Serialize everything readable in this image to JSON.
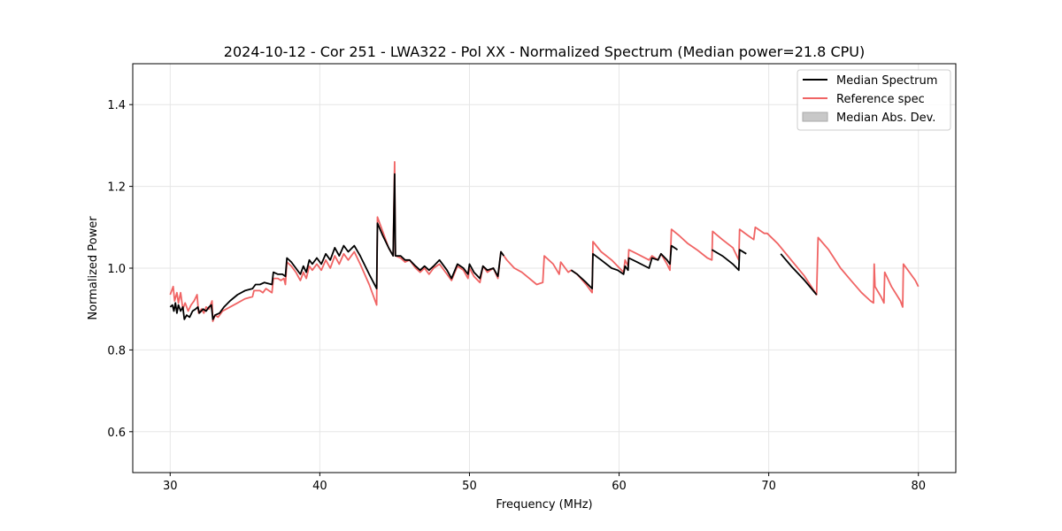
{
  "chart_data": {
    "type": "line",
    "title": "2024-10-12 - Cor 251 - LWA322 - Pol XX - Normalized Spectrum (Median power=21.8 CPU)",
    "xlabel": "Frequency (MHz)",
    "ylabel": "Normalized Power",
    "xlim": [
      27.5,
      82.5
    ],
    "ylim": [
      0.5,
      1.5
    ],
    "xticks": [
      30,
      40,
      50,
      60,
      70,
      80
    ],
    "yticks": [
      0.6,
      0.8,
      1.0,
      1.2,
      1.4
    ],
    "xtick_labels": [
      "30",
      "40",
      "50",
      "60",
      "70",
      "80"
    ],
    "ytick_labels": [
      "0.6",
      "0.8",
      "1.0",
      "1.2",
      "1.4"
    ],
    "grid": true,
    "legend_position": "top-right",
    "legend": [
      {
        "label": "Median Spectrum",
        "kind": "line",
        "color": "#000000"
      },
      {
        "label": "Reference spec",
        "kind": "line",
        "color": "#f06464"
      },
      {
        "label": "Median Abs. Dev.",
        "kind": "patch",
        "color": "#c8c8c8"
      }
    ],
    "series": [
      {
        "name": "Reference spec",
        "color": "#f06464",
        "segments": [
          [
            [
              30.0,
              0.935
            ],
            [
              30.2,
              0.955
            ],
            [
              30.3,
              0.92
            ],
            [
              30.45,
              0.94
            ],
            [
              30.55,
              0.915
            ],
            [
              30.7,
              0.94
            ],
            [
              30.85,
              0.9
            ],
            [
              31.0,
              0.915
            ],
            [
              31.2,
              0.895
            ],
            [
              31.4,
              0.91
            ],
            [
              31.6,
              0.92
            ],
            [
              31.8,
              0.935
            ],
            [
              31.9,
              0.89
            ],
            [
              32.1,
              0.9
            ],
            [
              32.25,
              0.89
            ],
            [
              32.4,
              0.905
            ],
            [
              32.6,
              0.9
            ],
            [
              32.8,
              0.92
            ],
            [
              32.85,
              0.87
            ],
            [
              33.0,
              0.885
            ],
            [
              33.2,
              0.88
            ],
            [
              33.5,
              0.895
            ],
            [
              34.0,
              0.905
            ],
            [
              34.5,
              0.915
            ],
            [
              35.0,
              0.925
            ],
            [
              35.5,
              0.93
            ],
            [
              35.6,
              0.945
            ],
            [
              36.0,
              0.945
            ],
            [
              36.2,
              0.94
            ],
            [
              36.4,
              0.95
            ],
            [
              36.8,
              0.94
            ],
            [
              36.9,
              0.975
            ],
            [
              37.2,
              0.975
            ],
            [
              37.4,
              0.97
            ],
            [
              37.6,
              0.975
            ],
            [
              37.7,
              0.96
            ],
            [
              37.8,
              1.015
            ],
            [
              38.1,
              1.005
            ],
            [
              38.4,
              0.99
            ],
            [
              38.7,
              0.97
            ],
            [
              38.9,
              0.99
            ],
            [
              39.1,
              0.975
            ],
            [
              39.3,
              1.005
            ],
            [
              39.5,
              0.995
            ],
            [
              39.8,
              1.01
            ],
            [
              40.1,
              0.995
            ],
            [
              40.4,
              1.02
            ],
            [
              40.7,
              1.0
            ],
            [
              41.0,
              1.03
            ],
            [
              41.3,
              1.01
            ],
            [
              41.6,
              1.035
            ],
            [
              41.9,
              1.02
            ],
            [
              42.3,
              1.04
            ],
            [
              42.7,
              1.01
            ],
            [
              43.3,
              0.96
            ],
            [
              43.8,
              0.91
            ],
            [
              43.85,
              1.125
            ],
            [
              44.2,
              1.09
            ],
            [
              44.6,
              1.05
            ],
            [
              44.9,
              1.03
            ],
            [
              45.0,
              1.26
            ],
            [
              45.05,
              1.03
            ],
            [
              45.4,
              1.025
            ],
            [
              45.7,
              1.015
            ],
            [
              46.0,
              1.02
            ],
            [
              46.4,
              1.0
            ],
            [
              46.7,
              0.99
            ],
            [
              47.0,
              1.0
            ],
            [
              47.3,
              0.985
            ],
            [
              47.6,
              1.0
            ],
            [
              48.0,
              1.01
            ],
            [
              48.5,
              0.985
            ],
            [
              48.8,
              0.97
            ],
            [
              49.2,
              1.005
            ],
            [
              49.6,
              0.995
            ],
            [
              49.9,
              0.975
            ],
            [
              50.0,
              1.0
            ],
            [
              50.3,
              0.98
            ],
            [
              50.7,
              0.965
            ],
            [
              50.9,
              1.005
            ],
            [
              51.2,
              0.99
            ],
            [
              51.6,
              1.0
            ],
            [
              51.9,
              0.975
            ],
            [
              52.1,
              1.04
            ],
            [
              52.5,
              1.02
            ],
            [
              53.0,
              1.0
            ],
            [
              53.5,
              0.99
            ],
            [
              54.0,
              0.975
            ],
            [
              54.5,
              0.96
            ],
            [
              54.9,
              0.965
            ],
            [
              55.0,
              1.03
            ],
            [
              55.6,
              1.01
            ],
            [
              56.0,
              0.985
            ],
            [
              56.1,
              1.015
            ],
            [
              56.6,
              0.99
            ],
            [
              56.8,
              0.995
            ],
            [
              57.2,
              0.985
            ],
            [
              57.8,
              0.96
            ],
            [
              58.2,
              0.94
            ],
            [
              58.25,
              1.065
            ],
            [
              58.8,
              1.04
            ],
            [
              59.5,
              1.02
            ],
            [
              59.9,
              1.005
            ],
            [
              60.3,
              0.99
            ],
            [
              60.4,
              1.02
            ],
            [
              60.6,
              1.005
            ],
            [
              60.65,
              1.045
            ],
            [
              61.2,
              1.035
            ],
            [
              62.0,
              1.02
            ],
            [
              62.2,
              1.03
            ],
            [
              62.6,
              1.02
            ],
            [
              62.8,
              1.035
            ],
            [
              63.2,
              1.01
            ],
            [
              63.4,
              0.995
            ],
            [
              63.5,
              1.095
            ],
            [
              64.0,
              1.08
            ],
            [
              64.6,
              1.06
            ],
            [
              65.2,
              1.045
            ],
            [
              65.9,
              1.025
            ],
            [
              66.2,
              1.02
            ],
            [
              66.25,
              1.09
            ],
            [
              66.9,
              1.07
            ],
            [
              67.6,
              1.05
            ],
            [
              68.0,
              1.02
            ],
            [
              68.05,
              1.095
            ],
            [
              68.6,
              1.08
            ],
            [
              69.0,
              1.07
            ],
            [
              69.1,
              1.1
            ],
            [
              69.7,
              1.085
            ],
            [
              69.9,
              1.085
            ],
            [
              70.6,
              1.06
            ],
            [
              71.5,
              1.02
            ],
            [
              72.4,
              0.98
            ],
            [
              73.2,
              0.935
            ],
            [
              73.3,
              1.075
            ],
            [
              74.0,
              1.045
            ],
            [
              74.8,
              1.0
            ],
            [
              75.5,
              0.97
            ],
            [
              76.2,
              0.94
            ],
            [
              76.8,
              0.92
            ],
            [
              77.0,
              0.915
            ],
            [
              77.05,
              1.01
            ],
            [
              77.1,
              0.955
            ],
            [
              77.5,
              0.93
            ],
            [
              77.7,
              0.915
            ],
            [
              77.75,
              0.99
            ],
            [
              78.2,
              0.955
            ],
            [
              78.8,
              0.92
            ],
            [
              78.95,
              0.905
            ],
            [
              79.0,
              1.01
            ],
            [
              79.4,
              0.99
            ],
            [
              79.8,
              0.97
            ],
            [
              80.0,
              0.955
            ]
          ]
        ]
      },
      {
        "name": "Median Spectrum",
        "color": "#000000",
        "segments": [
          [
            [
              30.0,
              0.905
            ],
            [
              30.15,
              0.91
            ],
            [
              30.25,
              0.895
            ],
            [
              30.35,
              0.915
            ],
            [
              30.45,
              0.89
            ],
            [
              30.55,
              0.91
            ],
            [
              30.7,
              0.895
            ],
            [
              30.85,
              0.905
            ],
            [
              30.95,
              0.875
            ],
            [
              31.1,
              0.885
            ],
            [
              31.3,
              0.88
            ],
            [
              31.5,
              0.895
            ],
            [
              31.7,
              0.9
            ],
            [
              31.85,
              0.905
            ],
            [
              31.95,
              0.89
            ],
            [
              32.2,
              0.9
            ],
            [
              32.4,
              0.895
            ],
            [
              32.6,
              0.905
            ],
            [
              32.75,
              0.91
            ],
            [
              32.85,
              0.875
            ],
            [
              33.0,
              0.885
            ],
            [
              33.3,
              0.89
            ],
            [
              33.6,
              0.905
            ],
            [
              34.0,
              0.92
            ],
            [
              34.5,
              0.935
            ],
            [
              35.0,
              0.945
            ],
            [
              35.5,
              0.95
            ],
            [
              35.7,
              0.96
            ],
            [
              36.0,
              0.96
            ],
            [
              36.3,
              0.965
            ],
            [
              36.8,
              0.96
            ],
            [
              36.9,
              0.99
            ],
            [
              37.2,
              0.985
            ],
            [
              37.5,
              0.985
            ],
            [
              37.7,
              0.98
            ],
            [
              37.8,
              1.025
            ],
            [
              38.1,
              1.015
            ],
            [
              38.4,
              1.0
            ],
            [
              38.7,
              0.985
            ],
            [
              38.9,
              1.005
            ],
            [
              39.1,
              0.99
            ],
            [
              39.3,
              1.02
            ],
            [
              39.5,
              1.01
            ],
            [
              39.8,
              1.025
            ],
            [
              40.1,
              1.01
            ],
            [
              40.4,
              1.035
            ],
            [
              40.7,
              1.02
            ],
            [
              41.0,
              1.05
            ],
            [
              41.3,
              1.03
            ],
            [
              41.6,
              1.055
            ],
            [
              41.9,
              1.04
            ],
            [
              42.3,
              1.055
            ],
            [
              42.7,
              1.03
            ],
            [
              43.3,
              0.985
            ],
            [
              43.8,
              0.95
            ],
            [
              43.85,
              1.11
            ],
            [
              44.2,
              1.08
            ],
            [
              44.6,
              1.05
            ],
            [
              44.9,
              1.03
            ],
            [
              45.0,
              1.23
            ],
            [
              45.05,
              1.03
            ],
            [
              45.4,
              1.03
            ],
            [
              45.7,
              1.02
            ],
            [
              46.0,
              1.02
            ],
            [
              46.4,
              1.005
            ],
            [
              46.7,
              0.995
            ],
            [
              47.0,
              1.005
            ],
            [
              47.3,
              0.995
            ],
            [
              47.6,
              1.005
            ],
            [
              48.0,
              1.02
            ],
            [
              48.5,
              0.995
            ],
            [
              48.8,
              0.975
            ],
            [
              49.2,
              1.01
            ],
            [
              49.6,
              1.0
            ],
            [
              49.9,
              0.985
            ],
            [
              50.0,
              1.01
            ],
            [
              50.3,
              0.99
            ],
            [
              50.7,
              0.975
            ],
            [
              50.9,
              1.005
            ],
            [
              51.2,
              0.995
            ],
            [
              51.6,
              1.0
            ],
            [
              51.9,
              0.98
            ],
            [
              52.1,
              1.04
            ],
            [
              52.3,
              1.03
            ]
          ],
          [
            [
              56.8,
              0.995
            ],
            [
              57.2,
              0.985
            ],
            [
              57.8,
              0.965
            ],
            [
              58.2,
              0.95
            ],
            [
              58.25,
              1.035
            ],
            [
              58.8,
              1.02
            ],
            [
              59.5,
              1.0
            ],
            [
              59.9,
              0.995
            ],
            [
              60.3,
              0.985
            ],
            [
              60.4,
              1.005
            ],
            [
              60.6,
              0.995
            ],
            [
              60.65,
              1.025
            ],
            [
              61.2,
              1.015
            ],
            [
              62.0,
              1.0
            ],
            [
              62.2,
              1.025
            ],
            [
              62.6,
              1.02
            ],
            [
              62.8,
              1.035
            ],
            [
              63.2,
              1.02
            ],
            [
              63.4,
              1.01
            ],
            [
              63.5,
              1.055
            ],
            [
              63.9,
              1.045
            ]
          ],
          [
            [
              66.2,
              1.045
            ],
            [
              66.9,
              1.03
            ],
            [
              67.6,
              1.01
            ],
            [
              68.0,
              0.995
            ],
            [
              68.05,
              1.045
            ],
            [
              68.5,
              1.035
            ]
          ],
          [
            [
              70.8,
              1.035
            ],
            [
              71.5,
              1.005
            ],
            [
              72.4,
              0.97
            ],
            [
              73.2,
              0.935
            ]
          ]
        ]
      }
    ]
  }
}
